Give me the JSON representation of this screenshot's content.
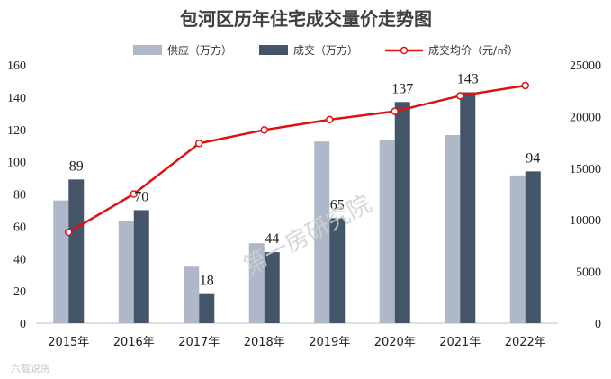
{
  "chart_data": {
    "type": "bar+line",
    "title": "包河区历年住宅成交量价走势图",
    "categories": [
      "2015年",
      "2016年",
      "2017年",
      "2018年",
      "2019年",
      "2020年",
      "2021年",
      "2022年"
    ],
    "series": [
      {
        "name": "供应（万方）",
        "type": "bar",
        "axis": "left",
        "color": "#aeb8c8",
        "values": [
          76,
          63.5,
          35,
          49.5,
          112.5,
          113.5,
          116.5,
          91.5
        ]
      },
      {
        "name": "成交（万方）",
        "type": "bar",
        "axis": "left",
        "color": "#445469",
        "values": [
          89,
          70,
          18,
          44,
          65,
          137,
          143,
          94
        ]
      },
      {
        "name": "成交均价（元/㎡）",
        "type": "line",
        "axis": "right",
        "color": "#e01010",
        "values": [
          8800,
          12500,
          17400,
          18700,
          19700,
          20500,
          22000,
          23000
        ]
      }
    ],
    "data_labels": [
      "89",
      "70",
      "18",
      "44",
      "65",
      "137",
      "143",
      "94"
    ],
    "y_left": {
      "min": 0,
      "max": 160,
      "step": 20,
      "ticks": [
        "0",
        "20",
        "40",
        "60",
        "80",
        "100",
        "120",
        "140",
        "160"
      ]
    },
    "y_right": {
      "min": 0,
      "max": 25000,
      "step": 5000,
      "ticks": [
        "0",
        "5000",
        "10000",
        "15000",
        "20000",
        "25000"
      ]
    },
    "legend_position": "top",
    "grid": false
  },
  "watermark": "第一房研究院",
  "source_mark": "六载说房"
}
